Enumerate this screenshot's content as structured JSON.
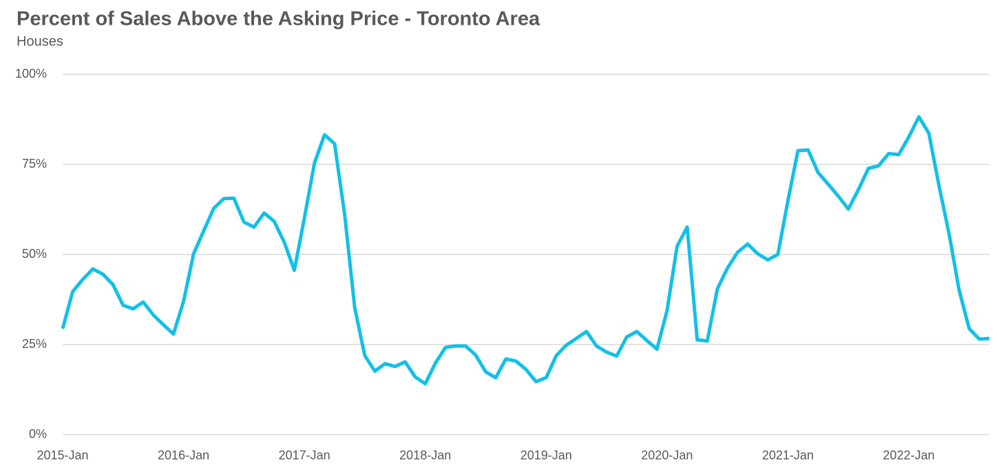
{
  "chart_data": {
    "type": "line",
    "title": "Percent of Sales Above the Asking Price - Toronto Area",
    "subtitle": "Houses",
    "categories": [
      "2015-Jan",
      null,
      null,
      null,
      null,
      null,
      null,
      null,
      null,
      null,
      null,
      null,
      "2016-Jan",
      null,
      null,
      null,
      null,
      null,
      null,
      null,
      null,
      null,
      null,
      null,
      "2017-Jan",
      null,
      null,
      null,
      null,
      null,
      null,
      null,
      null,
      null,
      null,
      null,
      "2018-Jan",
      null,
      null,
      null,
      null,
      null,
      null,
      null,
      null,
      null,
      null,
      null,
      "2019-Jan",
      null,
      null,
      null,
      null,
      null,
      null,
      null,
      null,
      null,
      null,
      null,
      "2020-Jan",
      null,
      null,
      null,
      null,
      null,
      null,
      null,
      null,
      null,
      null,
      null,
      "2021-Jan",
      null,
      null,
      null,
      null,
      null,
      null,
      null,
      null,
      null,
      null,
      null,
      "2022-Jan",
      null,
      null,
      null,
      null,
      null,
      null,
      null,
      null
    ],
    "values": [
      29.4,
      39.7,
      43.1,
      46,
      44.5,
      41.6,
      35.9,
      34.9,
      36.8,
      33.2,
      30.5,
      27.9,
      37,
      50.2,
      56.5,
      62.8,
      65.5,
      65.6,
      59,
      57.6,
      61.5,
      59.2,
      53.4,
      45.6,
      60.1,
      75.4,
      83.2,
      80.7,
      60.9,
      35.1,
      21.9,
      17.6,
      19.7,
      18.9,
      20.2,
      16,
      14.1,
      19.8,
      24.2,
      24.6,
      24.6,
      22.1,
      17.4,
      15.8,
      21,
      20.4,
      18.1,
      14.7,
      15.8,
      21.9,
      24.8,
      26.7,
      28.6,
      24.6,
      22.9,
      21.8,
      27.1,
      28.6,
      26.1,
      23.7,
      34.4,
      52.3,
      57.6,
      26.3,
      26,
      40.5,
      46.2,
      50.6,
      52.9,
      50.2,
      48.5,
      50,
      64.9,
      78.8,
      79,
      72.7,
      69.5,
      66.2,
      62.6,
      68,
      73.9,
      74.6,
      78,
      77.7,
      82.6,
      88.2,
      83.6,
      69.1,
      55.7,
      40.1,
      29.4,
      26.5,
      26.7
    ],
    "color": "#12c0e6",
    "ylim": [
      0,
      100
    ],
    "yticks": [
      {
        "value": 0,
        "label": "0%"
      },
      {
        "value": 25,
        "label": "25%"
      },
      {
        "value": 50,
        "label": "50%"
      },
      {
        "value": 75,
        "label": "75%"
      },
      {
        "value": 100,
        "label": "100%"
      }
    ],
    "grid": true
  }
}
